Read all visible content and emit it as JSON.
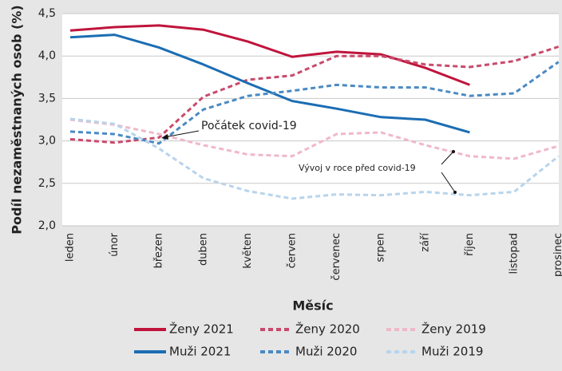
{
  "chart_data": {
    "type": "line",
    "xlabel": "Měsíc",
    "ylabel": "Podíl nezaměstnaných osob (%)",
    "categories": [
      "leden",
      "únor",
      "březen",
      "duben",
      "květen",
      "červen",
      "červenec",
      "srpen",
      "září",
      "říjen",
      "listopad",
      "prosinec"
    ],
    "ylim": [
      2.0,
      4.5
    ],
    "yticks": [
      {
        "value": 2.0,
        "label": "2,0"
      },
      {
        "value": 2.5,
        "label": "2,5"
      },
      {
        "value": 3.0,
        "label": "3,0"
      },
      {
        "value": 3.5,
        "label": "3,5"
      },
      {
        "value": 4.0,
        "label": "4,0"
      },
      {
        "value": 4.5,
        "label": "4,5"
      }
    ],
    "grid": true,
    "series": [
      {
        "name": "Ženy 2021",
        "color": "#c0143c",
        "style": "solid",
        "values": [
          4.3,
          4.34,
          4.36,
          4.31,
          4.17,
          3.99,
          4.05,
          4.02,
          3.86,
          3.66,
          null,
          null
        ]
      },
      {
        "name": "Ženy 2020",
        "color": "#c84a6c",
        "style": "dashed",
        "values": [
          3.02,
          2.98,
          3.04,
          3.52,
          3.72,
          3.77,
          4.0,
          4.0,
          3.9,
          3.87,
          3.94,
          4.11
        ]
      },
      {
        "name": "Ženy 2019",
        "color": "#f0b8c8",
        "style": "dashed",
        "values": [
          3.25,
          3.19,
          3.08,
          2.95,
          2.84,
          2.82,
          3.08,
          3.1,
          2.95,
          2.82,
          2.79,
          2.94
        ]
      },
      {
        "name": "Muži 2021",
        "color": "#1b6db3",
        "style": "solid",
        "values": [
          4.22,
          4.25,
          4.1,
          3.9,
          3.68,
          3.47,
          3.38,
          3.28,
          3.25,
          3.1,
          null,
          null
        ]
      },
      {
        "name": "Muži 2020",
        "color": "#4a8ac4",
        "style": "dashed",
        "values": [
          3.11,
          3.08,
          2.97,
          3.37,
          3.53,
          3.59,
          3.66,
          3.63,
          3.63,
          3.53,
          3.56,
          3.93
        ]
      },
      {
        "name": "Muži 2019",
        "color": "#b8d4ec",
        "style": "dashed",
        "values": [
          3.26,
          3.2,
          2.91,
          2.56,
          2.41,
          2.32,
          2.37,
          2.36,
          2.4,
          2.36,
          2.4,
          2.82
        ]
      }
    ],
    "annotations": [
      "Počátek covid-19",
      "Vývoj v roce před covid-19"
    ]
  }
}
